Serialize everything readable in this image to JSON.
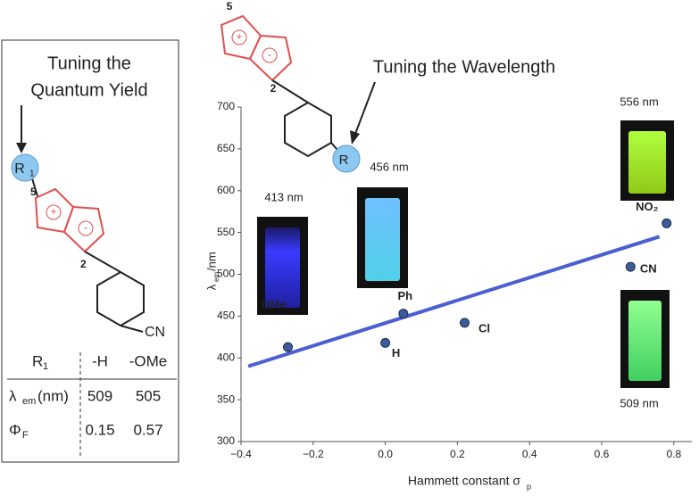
{
  "chart_data": {
    "type": "scatter",
    "title": "Tuning the Wavelength",
    "x_label": "Hammett constant σ",
    "x_label_sub": "p",
    "y_label": "λ",
    "y_label_sub": "em",
    "y_label_unit": " /nm",
    "x": [
      -0.27,
      0.0,
      0.05,
      0.22,
      0.68,
      0.78
    ],
    "values": [
      413,
      418,
      453,
      442,
      509,
      561
    ],
    "point_labels": [
      "OMe",
      "H",
      "Ph",
      "Cl",
      "CN",
      "NO₂"
    ],
    "color": "#3d5a99",
    "fit_line": {
      "x": [
        -0.38,
        0.76
      ],
      "values": [
        390,
        545
      ],
      "color": "#4a5fd0"
    },
    "emission_labels": [
      "413 nm",
      "456 nm",
      "556 nm",
      "509 nm"
    ],
    "xlim": [
      -0.4,
      0.85
    ],
    "ylim": [
      300,
      700
    ],
    "xticks": [
      {
        "value": -0.4,
        "label": "−0.4"
      },
      {
        "value": -0.2,
        "label": "−0.2"
      },
      {
        "value": 0,
        "label": "0.0"
      },
      0.2,
      0.4,
      0.6,
      0.8
    ],
    "yticks": [
      300,
      350,
      400,
      450,
      500,
      550,
      600,
      650,
      700
    ],
    "molecule_labels": [
      "5",
      "2",
      "R",
      "+",
      "-"
    ]
  },
  "left_panel": {
    "title": [
      "Tuning the",
      "Quantum Yield"
    ],
    "molecule_labels": [
      "R",
      "1",
      "5",
      "2",
      "+",
      "-",
      "CN"
    ],
    "table": {
      "header": [
        "R",
        "1",
        "-H",
        "-OMe"
      ],
      "rows": [
        {
          "label": "λ",
          "sub": "em",
          "unit": "(nm)",
          "values": [
            509,
            505
          ]
        },
        {
          "label": "Φ",
          "sub": "F",
          "values": [
            0.15,
            0.57
          ]
        }
      ]
    }
  }
}
